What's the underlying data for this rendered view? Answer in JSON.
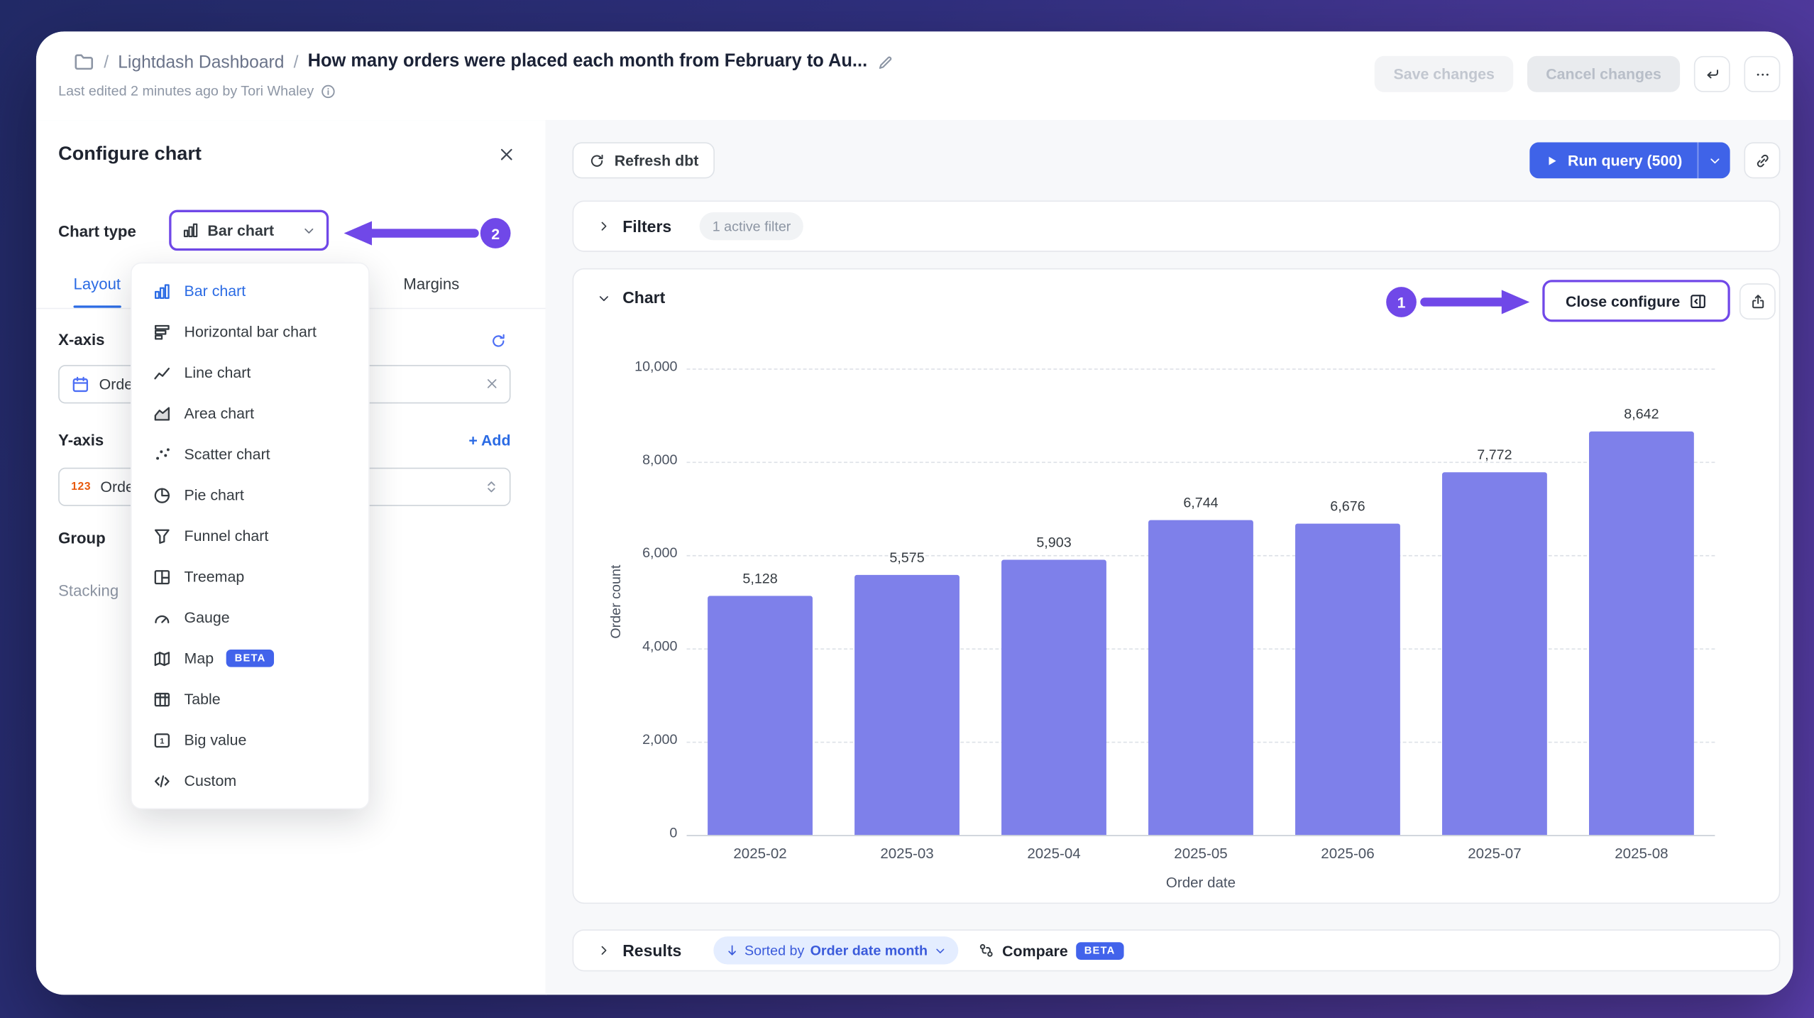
{
  "header": {
    "separator": "/",
    "breadcrumb_root": "Lightdash Dashboard",
    "title": "How many orders were placed each month from February to Au...",
    "last_edited": "Last edited 2 minutes ago by Tori Whaley",
    "save_label": "Save changes",
    "cancel_label": "Cancel changes"
  },
  "config_panel": {
    "title": "Configure chart",
    "chart_type_label": "Chart type",
    "chart_type_value": "Bar chart",
    "tabs": [
      {
        "label": "Layout",
        "active": true
      },
      {
        "label": "Margins",
        "active": false
      }
    ],
    "x_axis": {
      "label": "X-axis",
      "field": "Order date month"
    },
    "y_axis": {
      "label": "Y-axis",
      "add": "+ Add",
      "icon_text": "123",
      "field": "Order count"
    },
    "group_label": "Group",
    "stacking_label": "Stacking"
  },
  "chart_type_menu": {
    "items": [
      {
        "label": "Bar chart",
        "icon": "bar-chart-icon",
        "selected": true
      },
      {
        "label": "Horizontal bar chart",
        "icon": "horizontal-bar-chart-icon"
      },
      {
        "label": "Line chart",
        "icon": "line-chart-icon"
      },
      {
        "label": "Area chart",
        "icon": "area-chart-icon"
      },
      {
        "label": "Scatter chart",
        "icon": "scatter-chart-icon"
      },
      {
        "label": "Pie chart",
        "icon": "pie-chart-icon"
      },
      {
        "label": "Funnel chart",
        "icon": "funnel-chart-icon"
      },
      {
        "label": "Treemap",
        "icon": "treemap-icon"
      },
      {
        "label": "Gauge",
        "icon": "gauge-icon"
      },
      {
        "label": "Map",
        "icon": "map-icon",
        "badge": "BETA"
      },
      {
        "label": "Table",
        "icon": "table-icon"
      },
      {
        "label": "Big value",
        "icon": "big-value-icon"
      },
      {
        "label": "Custom",
        "icon": "custom-icon"
      }
    ]
  },
  "toolbar": {
    "refresh_dbt": "Refresh dbt",
    "run_query": "Run query (500)"
  },
  "filters_section": {
    "title": "Filters",
    "badge": "1 active filter"
  },
  "chart_section": {
    "title": "Chart",
    "close_configure": "Close configure"
  },
  "results_section": {
    "title": "Results",
    "sorted_prefix": "Sorted by",
    "sorted_field": "Order date month",
    "compare": "Compare",
    "beta": "BETA"
  },
  "annotations": {
    "step1": "1",
    "step2": "2"
  },
  "colors": {
    "accent_purple": "#7048e8",
    "primary_blue": "#3f63e8",
    "selected_blue": "#2b6be4",
    "beta_badge": "#4263eb",
    "bar_fill": "#7e80ea"
  },
  "chart_data": {
    "type": "bar",
    "categories": [
      "2025-02",
      "2025-03",
      "2025-04",
      "2025-05",
      "2025-06",
      "2025-07",
      "2025-08"
    ],
    "values": [
      5128,
      5575,
      5903,
      6744,
      6676,
      7772,
      8642
    ],
    "value_labels": [
      "5,128",
      "5,575",
      "5,903",
      "6,744",
      "6,676",
      "7,772",
      "8,642"
    ],
    "xlabel": "Order date",
    "ylabel": "Order count",
    "ylim": [
      0,
      10000
    ],
    "yticks": [
      "10,000",
      "8,000",
      "6,000",
      "4,000",
      "2,000",
      "0"
    ],
    "grid": "horizontal-dashed",
    "legend": "none",
    "bar_color": "#7e80ea"
  }
}
